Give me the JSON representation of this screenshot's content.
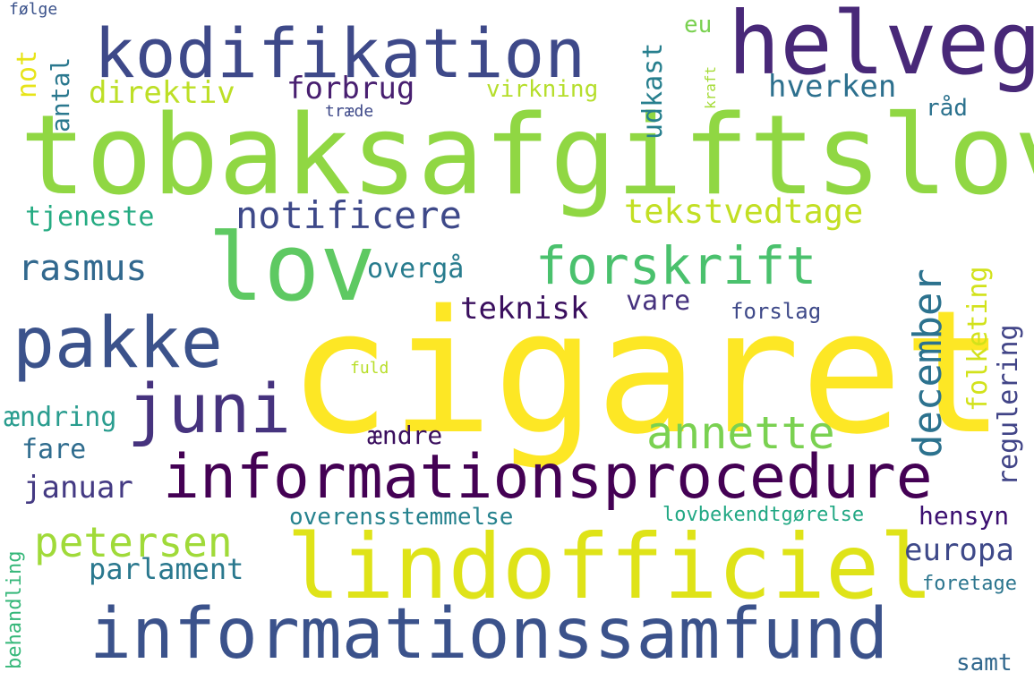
{
  "words": [
    {
      "text": "cigaret",
      "color": "#fde725"
    },
    {
      "text": "tobaksafgiftslov",
      "color": "#90d743"
    },
    {
      "text": "lindofficiel",
      "color": "#dfe318"
    },
    {
      "text": "informationssamfund",
      "color": "#3b528b"
    },
    {
      "text": "informationsprocedure",
      "color": "#440154"
    },
    {
      "text": "kodifikation",
      "color": "#3e4989"
    },
    {
      "text": "helveg",
      "color": "#482878"
    },
    {
      "text": "lov",
      "color": "#5ec962"
    },
    {
      "text": "pakke",
      "color": "#3b528b"
    },
    {
      "text": "juni",
      "color": "#46337e"
    },
    {
      "text": "forskrift",
      "color": "#4ac16d"
    },
    {
      "text": "notificere",
      "color": "#3e4989"
    },
    {
      "text": "annette",
      "color": "#7ad151"
    },
    {
      "text": "petersen",
      "color": "#a0da39"
    },
    {
      "text": "december",
      "color": "#2c728e"
    },
    {
      "text": "rasmus",
      "color": "#31688e"
    },
    {
      "text": "tekstvedtage",
      "color": "#c2df23"
    },
    {
      "text": "forbrug",
      "color": "#481f70"
    },
    {
      "text": "direktiv",
      "color": "#bddf26"
    },
    {
      "text": "hverken",
      "color": "#2d708e"
    },
    {
      "text": "udkast",
      "color": "#277f8e"
    },
    {
      "text": "teknisk",
      "color": "#3a0f5e"
    },
    {
      "text": "januar",
      "color": "#443a83"
    },
    {
      "text": "parlament",
      "color": "#2a788e"
    },
    {
      "text": "europa",
      "color": "#3e4989"
    },
    {
      "text": "overgå",
      "color": "#287c8e"
    },
    {
      "text": "vare",
      "color": "#46327e"
    },
    {
      "text": "tjeneste",
      "color": "#25ab82"
    },
    {
      "text": "folketing",
      "color": "#d2e21b"
    },
    {
      "text": "regulering",
      "color": "#414487"
    },
    {
      "text": "overensstemmelse",
      "color": "#26828e"
    },
    {
      "text": "hensyn",
      "color": "#3b0f70"
    },
    {
      "text": "fare",
      "color": "#2f6c8e"
    },
    {
      "text": "ændring",
      "color": "#2a9d8f"
    },
    {
      "text": "ændre",
      "color": "#3a0e5e"
    },
    {
      "text": "virkning",
      "color": "#b5de2b"
    },
    {
      "text": "antal",
      "color": "#2a788e"
    },
    {
      "text": "not",
      "color": "#e7e419"
    },
    {
      "text": "forslag",
      "color": "#3e4989"
    },
    {
      "text": "lovbekendtgørelse",
      "color": "#22a884"
    },
    {
      "text": "behandling",
      "color": "#35b779"
    },
    {
      "text": "foretage",
      "color": "#2b758e"
    },
    {
      "text": "samt",
      "color": "#31688e"
    },
    {
      "text": "råd",
      "color": "#2c728e"
    },
    {
      "text": "eu",
      "color": "#7ad151"
    },
    {
      "text": "kraft",
      "color": "#a5db36"
    },
    {
      "text": "følge",
      "color": "#3b528b"
    },
    {
      "text": "træde",
      "color": "#3e4989"
    },
    {
      "text": "fuld",
      "color": "#b8de29"
    }
  ]
}
